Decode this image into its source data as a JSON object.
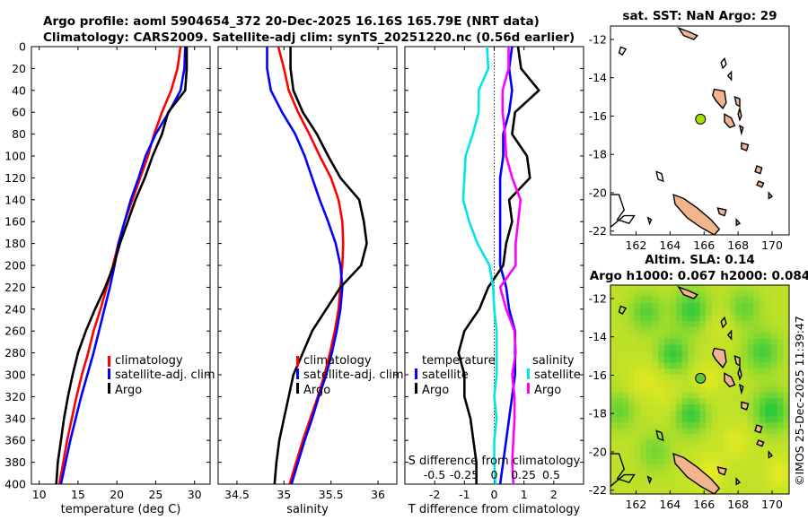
{
  "figure": {
    "title_line1": "Argo profile: aoml 5904654_372 20-Dec-2025 16.16S 165.79E (NRT data)",
    "title_line2": "Climatology: CARS2009. Satellite-adj clim: synTS_20251220.nc (0.56d earlier)",
    "watermark": "©IMOS 25-Dec-2025 11:39:47"
  },
  "chart_data": [
    {
      "id": "temperature_profile",
      "type": "line",
      "xlabel": "temperature (deg C)",
      "ylabel": "",
      "xlim": [
        9,
        32
      ],
      "ylim": [
        0,
        400
      ],
      "y_reversed": true,
      "xticks": [
        "10",
        "15",
        "20",
        "25",
        "30"
      ],
      "xtick_values": [
        10,
        15,
        20,
        25,
        30
      ],
      "yticks": [
        "0",
        "20",
        "40",
        "60",
        "80",
        "100",
        "120",
        "140",
        "160",
        "180",
        "200",
        "220",
        "240",
        "260",
        "280",
        "300",
        "320",
        "340",
        "360",
        "380",
        "400"
      ],
      "legend": {
        "items": [
          "climatology",
          "satellite-adj. clim",
          "Argo"
        ],
        "position": "lower-right"
      },
      "series": [
        {
          "name": "climatology",
          "color": "#ff0000",
          "points": [
            [
              28.2,
              0
            ],
            [
              27.8,
              20
            ],
            [
              27.0,
              40
            ],
            [
              25.8,
              60
            ],
            [
              24.8,
              80
            ],
            [
              24.0,
              100
            ],
            [
              23.0,
              120
            ],
            [
              22.0,
              140
            ],
            [
              21.0,
              160
            ],
            [
              20.2,
              180
            ],
            [
              19.5,
              200
            ],
            [
              18.7,
              220
            ],
            [
              17.9,
              240
            ],
            [
              17.0,
              260
            ],
            [
              16.3,
              280
            ],
            [
              15.5,
              300
            ],
            [
              14.8,
              320
            ],
            [
              14.2,
              340
            ],
            [
              13.6,
              360
            ],
            [
              13.1,
              380
            ],
            [
              12.6,
              400
            ]
          ]
        },
        {
          "name": "satellite-adj. clim",
          "color": "#0000ff",
          "points": [
            [
              28.8,
              0
            ],
            [
              28.7,
              20
            ],
            [
              28.2,
              40
            ],
            [
              26.7,
              60
            ],
            [
              25.0,
              80
            ],
            [
              23.7,
              100
            ],
            [
              22.8,
              120
            ],
            [
              21.8,
              140
            ],
            [
              21.0,
              160
            ],
            [
              20.2,
              180
            ],
            [
              19.7,
              200
            ],
            [
              19.1,
              220
            ],
            [
              18.4,
              240
            ],
            [
              17.7,
              260
            ],
            [
              17.0,
              280
            ],
            [
              16.2,
              300
            ],
            [
              15.4,
              320
            ],
            [
              14.7,
              340
            ],
            [
              14.0,
              360
            ],
            [
              13.4,
              380
            ],
            [
              12.8,
              400
            ]
          ]
        },
        {
          "name": "Argo",
          "color": "#000000",
          "points": [
            [
              29.0,
              0
            ],
            [
              29.0,
              20
            ],
            [
              28.8,
              40
            ],
            [
              26.6,
              60
            ],
            [
              25.8,
              80
            ],
            [
              24.6,
              100
            ],
            [
              23.6,
              120
            ],
            [
              22.4,
              140
            ],
            [
              21.4,
              160
            ],
            [
              20.4,
              180
            ],
            [
              19.6,
              200
            ],
            [
              18.5,
              220
            ],
            [
              17.2,
              240
            ],
            [
              16.0,
              260
            ],
            [
              15.0,
              280
            ],
            [
              14.3,
              300
            ],
            [
              13.7,
              320
            ],
            [
              13.2,
              340
            ],
            [
              12.8,
              360
            ],
            [
              12.4,
              380
            ],
            [
              12.2,
              400
            ]
          ]
        }
      ]
    },
    {
      "id": "salinity_profile",
      "type": "line",
      "xlabel": "salinity",
      "ylabel": "",
      "xlim": [
        34.3,
        36.2
      ],
      "ylim": [
        0,
        400
      ],
      "y_reversed": true,
      "xticks": [
        "34.5",
        "35",
        "35.5",
        "36"
      ],
      "xtick_values": [
        34.5,
        35.0,
        35.5,
        36.0
      ],
      "legend": {
        "items": [
          "climatology",
          "satellite-adj. clim",
          "Argo"
        ],
        "position": "lower-right"
      },
      "series": [
        {
          "name": "climatology",
          "color": "#ff0000",
          "points": [
            [
              34.94,
              0
            ],
            [
              35.0,
              20
            ],
            [
              35.05,
              40
            ],
            [
              35.15,
              60
            ],
            [
              35.27,
              80
            ],
            [
              35.38,
              100
            ],
            [
              35.5,
              120
            ],
            [
              35.58,
              140
            ],
            [
              35.62,
              160
            ],
            [
              35.63,
              180
            ],
            [
              35.62,
              200
            ],
            [
              35.6,
              220
            ],
            [
              35.58,
              240
            ],
            [
              35.54,
              260
            ],
            [
              35.49,
              280
            ],
            [
              35.43,
              300
            ],
            [
              35.36,
              320
            ],
            [
              35.28,
              340
            ],
            [
              35.2,
              360
            ],
            [
              35.13,
              380
            ],
            [
              35.06,
              400
            ]
          ]
        },
        {
          "name": "satellite-adj. clim",
          "color": "#0000ff",
          "points": [
            [
              34.82,
              0
            ],
            [
              34.82,
              20
            ],
            [
              34.86,
              40
            ],
            [
              34.98,
              60
            ],
            [
              35.12,
              80
            ],
            [
              35.22,
              100
            ],
            [
              35.3,
              120
            ],
            [
              35.38,
              140
            ],
            [
              35.47,
              160
            ],
            [
              35.55,
              180
            ],
            [
              35.6,
              200
            ],
            [
              35.62,
              220
            ],
            [
              35.6,
              240
            ],
            [
              35.56,
              260
            ],
            [
              35.51,
              280
            ],
            [
              35.45,
              300
            ],
            [
              35.37,
              320
            ],
            [
              35.3,
              340
            ],
            [
              35.22,
              360
            ],
            [
              35.15,
              380
            ],
            [
              35.08,
              400
            ]
          ]
        },
        {
          "name": "Argo",
          "color": "#000000",
          "points": [
            [
              35.07,
              0
            ],
            [
              35.07,
              20
            ],
            [
              35.1,
              40
            ],
            [
              35.2,
              60
            ],
            [
              35.35,
              80
            ],
            [
              35.47,
              100
            ],
            [
              35.6,
              120
            ],
            [
              35.8,
              140
            ],
            [
              35.85,
              160
            ],
            [
              35.88,
              180
            ],
            [
              35.82,
              200
            ],
            [
              35.6,
              220
            ],
            [
              35.45,
              240
            ],
            [
              35.3,
              260
            ],
            [
              35.2,
              280
            ],
            [
              35.1,
              300
            ],
            [
              35.05,
              320
            ],
            [
              35.0,
              340
            ],
            [
              34.95,
              360
            ],
            [
              34.92,
              380
            ],
            [
              34.9,
              400
            ]
          ]
        }
      ]
    },
    {
      "id": "difference_profile",
      "type": "line",
      "xlabel": "T difference from climatology",
      "top_xlabel": "S difference from climatology",
      "ylabel": "",
      "xlim": [
        -3,
        3
      ],
      "ylim": [
        0,
        400
      ],
      "y_reversed": true,
      "xticks": [
        "-2",
        "-1",
        "0",
        "1",
        "2"
      ],
      "xtick_values": [
        -2,
        -1,
        0,
        1,
        2
      ],
      "s_xticks": [
        "-0.5",
        "-0.25",
        "0",
        "0.25",
        "0.5"
      ],
      "legend": {
        "temperature_title": "temperature",
        "salinity_title": "salinity",
        "items": [
          "satellite",
          "Argo",
          "satellite",
          "Argo"
        ]
      },
      "series": [
        {
          "name": "temperature satellite",
          "color": "#0000ff",
          "points": [
            [
              0.6,
              0
            ],
            [
              0.5,
              20
            ],
            [
              0.6,
              40
            ],
            [
              0.5,
              60
            ],
            [
              0.3,
              80
            ],
            [
              0.3,
              100
            ],
            [
              0.2,
              120
            ],
            [
              0.2,
              140
            ],
            [
              0.2,
              160
            ],
            [
              0.2,
              180
            ],
            [
              0.2,
              200
            ],
            [
              0.4,
              220
            ],
            [
              0.5,
              240
            ],
            [
              0.7,
              260
            ],
            [
              0.7,
              280
            ],
            [
              0.7,
              300
            ],
            [
              0.6,
              320
            ],
            [
              0.5,
              340
            ],
            [
              0.4,
              360
            ],
            [
              0.3,
              380
            ],
            [
              0.2,
              400
            ]
          ]
        },
        {
          "name": "temperature Argo",
          "color": "#000000",
          "points": [
            [
              0.8,
              0
            ],
            [
              0.9,
              20
            ],
            [
              1.5,
              40
            ],
            [
              0.7,
              60
            ],
            [
              0.6,
              80
            ],
            [
              1.1,
              100
            ],
            [
              1.2,
              120
            ],
            [
              0.5,
              140
            ],
            [
              0.6,
              160
            ],
            [
              0.4,
              180
            ],
            [
              0.3,
              200
            ],
            [
              -0.2,
              220
            ],
            [
              -0.5,
              240
            ],
            [
              -1.0,
              260
            ],
            [
              -1.2,
              280
            ],
            [
              -1.0,
              300
            ],
            [
              -1.0,
              320
            ],
            [
              -0.8,
              340
            ],
            [
              -0.7,
              360
            ],
            [
              -0.6,
              380
            ],
            [
              -0.6,
              400
            ]
          ]
        },
        {
          "name": "salinity satellite",
          "color": "#00e5e5",
          "points": [
            [
              -0.06,
              0
            ],
            [
              -0.05,
              20
            ],
            [
              -0.13,
              40
            ],
            [
              -0.13,
              60
            ],
            [
              -0.18,
              80
            ],
            [
              -0.24,
              100
            ],
            [
              -0.25,
              120
            ],
            [
              -0.26,
              140
            ],
            [
              -0.21,
              160
            ],
            [
              -0.14,
              180
            ],
            [
              -0.04,
              200
            ],
            [
              -0.01,
              220
            ],
            [
              0.0,
              240
            ],
            [
              0.02,
              260
            ],
            [
              0.02,
              280
            ],
            [
              0.02,
              300
            ],
            [
              0.0,
              320
            ],
            [
              0.02,
              340
            ],
            [
              0.0,
              360
            ],
            [
              0.0,
              380
            ],
            [
              0.01,
              400
            ]
          ]
        },
        {
          "name": "salinity Argo",
          "color": "#ff00ff",
          "points": [
            [
              0.12,
              0
            ],
            [
              0.12,
              20
            ],
            [
              0.07,
              40
            ],
            [
              0.07,
              60
            ],
            [
              0.09,
              80
            ],
            [
              0.1,
              100
            ],
            [
              0.15,
              120
            ],
            [
              0.22,
              140
            ],
            [
              0.2,
              160
            ],
            [
              0.18,
              180
            ],
            [
              0.18,
              200
            ],
            [
              0.05,
              220
            ],
            [
              0.1,
              240
            ],
            [
              0.17,
              260
            ],
            [
              0.18,
              280
            ],
            [
              0.15,
              300
            ],
            [
              0.17,
              320
            ],
            [
              0.17,
              340
            ],
            [
              0.16,
              360
            ],
            [
              0.15,
              380
            ],
            [
              0.16,
              400
            ]
          ]
        }
      ]
    },
    {
      "id": "sst_map",
      "type": "map",
      "title": "sat. SST: NaN Argo: 29",
      "xticks": [
        "162",
        "164",
        "166",
        "168",
        "170"
      ],
      "yticks": [
        "-12",
        "-14",
        "-16",
        "-18",
        "-20",
        "-22"
      ],
      "xlim": [
        160.5,
        171
      ],
      "ylim": [
        -22.2,
        -11.3
      ],
      "argo_point": [
        165.79,
        -16.16
      ],
      "marker_color": "#a8dd00",
      "land_color": "#f2b48c"
    },
    {
      "id": "sla_map",
      "type": "heatmap",
      "title_line1": "Altim. SLA: 0.14",
      "title_line2": "Argo h1000: 0.067 h2000: 0.084",
      "xticks": [
        "162",
        "164",
        "166",
        "168",
        "170"
      ],
      "yticks": [
        "-12",
        "-14",
        "-16",
        "-18",
        "-20",
        "-22"
      ],
      "xlim": [
        160.5,
        171
      ],
      "ylim": [
        -22.2,
        -11.3
      ],
      "argo_point": [
        165.79,
        -16.16
      ],
      "marker_color": "#5bc83a",
      "land_color": "#f2b48c"
    }
  ]
}
